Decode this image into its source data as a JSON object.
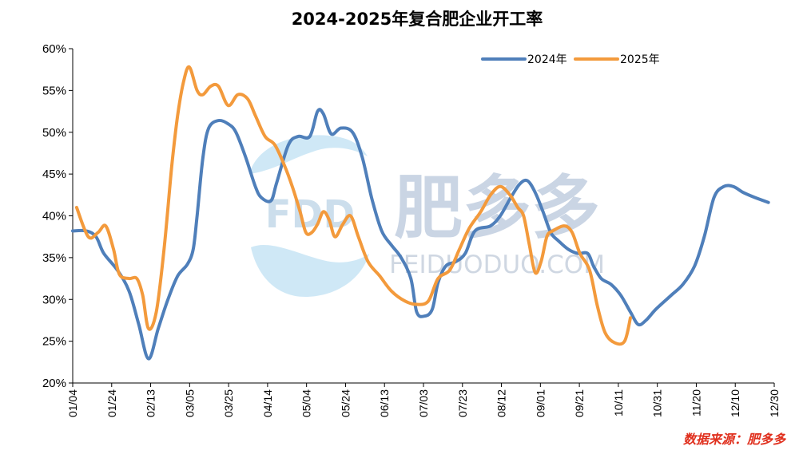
{
  "chart_data": {
    "type": "line",
    "title": "2024-2025年复合肥企业开工率",
    "x_tick_labels": [
      "01/04",
      "01/24",
      "02/13",
      "03/05",
      "03/25",
      "04/14",
      "05/04",
      "05/24",
      "06/13",
      "07/03",
      "07/23",
      "08/12",
      "09/01",
      "09/21",
      "10/11",
      "10/31",
      "11/20",
      "12/10",
      "12/30"
    ],
    "y_ticks": [
      20,
      25,
      30,
      35,
      40,
      45,
      50,
      55,
      60
    ],
    "y_tick_labels": [
      "20%",
      "25%",
      "30%",
      "35%",
      "40%",
      "45%",
      "50%",
      "55%",
      "60%"
    ],
    "ylim": [
      20,
      60
    ],
    "x_unit": "day_of_year",
    "xlim": [
      4,
      365
    ],
    "legend": {
      "position": "top-right"
    },
    "series": [
      {
        "name": "2024年",
        "color": "#4f7fba",
        "points": [
          [
            4,
            38.2
          ],
          [
            11,
            38.2
          ],
          [
            16,
            37.5
          ],
          [
            20,
            35.5
          ],
          [
            27,
            33.5
          ],
          [
            33,
            31
          ],
          [
            38,
            27
          ],
          [
            43,
            22.9
          ],
          [
            48,
            26.5
          ],
          [
            53,
            30
          ],
          [
            58,
            32.8
          ],
          [
            63,
            34.2
          ],
          [
            66,
            36
          ],
          [
            68,
            40
          ],
          [
            71,
            47
          ],
          [
            74,
            50.5
          ],
          [
            79,
            51.4
          ],
          [
            84,
            51
          ],
          [
            88,
            50
          ],
          [
            93,
            47
          ],
          [
            98,
            43.5
          ],
          [
            101,
            42.2
          ],
          [
            106,
            41.8
          ],
          [
            109,
            44
          ],
          [
            115,
            48.5
          ],
          [
            120,
            49.5
          ],
          [
            126,
            49.5
          ],
          [
            130,
            52.5
          ],
          [
            133,
            52.2
          ],
          [
            137,
            49.8
          ],
          [
            142,
            50.5
          ],
          [
            148,
            50
          ],
          [
            153,
            47
          ],
          [
            158,
            42
          ],
          [
            163,
            38.2
          ],
          [
            168,
            36.5
          ],
          [
            173,
            35
          ],
          [
            178,
            32.5
          ],
          [
            181,
            28.5
          ],
          [
            185,
            28
          ],
          [
            189,
            28.8
          ],
          [
            192,
            32
          ],
          [
            196,
            34
          ],
          [
            201,
            34.5
          ],
          [
            206,
            35.5
          ],
          [
            211,
            38.2
          ],
          [
            219,
            38.8
          ],
          [
            224,
            40
          ],
          [
            229,
            42
          ],
          [
            234,
            43.8
          ],
          [
            238,
            44.2
          ],
          [
            242,
            42.8
          ],
          [
            246,
            40.5
          ],
          [
            250,
            38
          ],
          [
            254,
            37
          ],
          [
            259,
            36
          ],
          [
            264,
            35.5
          ],
          [
            269,
            35.5
          ],
          [
            272,
            34
          ],
          [
            276,
            32.5
          ],
          [
            281,
            31.8
          ],
          [
            286,
            30.5
          ],
          [
            291,
            28.5
          ],
          [
            295,
            27
          ],
          [
            299,
            27.5
          ],
          [
            304,
            28.8
          ],
          [
            312,
            30.5
          ],
          [
            318,
            31.8
          ],
          [
            324,
            34
          ],
          [
            329,
            37.5
          ],
          [
            334,
            42.2
          ],
          [
            339,
            43.5
          ],
          [
            344,
            43.5
          ],
          [
            349,
            42.8
          ],
          [
            355,
            42.2
          ],
          [
            362,
            41.6
          ]
        ]
      },
      {
        "name": "2025年",
        "color": "#f39a3c",
        "points": [
          [
            6,
            41
          ],
          [
            12,
            37.5
          ],
          [
            17,
            38
          ],
          [
            21,
            38.8
          ],
          [
            25,
            36
          ],
          [
            28,
            33
          ],
          [
            33,
            32.5
          ],
          [
            37,
            32.5
          ],
          [
            40,
            30.5
          ],
          [
            43,
            26.5
          ],
          [
            47,
            28.5
          ],
          [
            51,
            36
          ],
          [
            55,
            46
          ],
          [
            58,
            52
          ],
          [
            61,
            56
          ],
          [
            64,
            57.8
          ],
          [
            68,
            55
          ],
          [
            71,
            54.5
          ],
          [
            75,
            55.5
          ],
          [
            79,
            55.5
          ],
          [
            84,
            53.2
          ],
          [
            89,
            54.5
          ],
          [
            94,
            54
          ],
          [
            98,
            52
          ],
          [
            103,
            49.5
          ],
          [
            108,
            48.5
          ],
          [
            113,
            46
          ],
          [
            117,
            43.5
          ],
          [
            121,
            40.5
          ],
          [
            124,
            38
          ],
          [
            127,
            38
          ],
          [
            130,
            39
          ],
          [
            133,
            40.5
          ],
          [
            136,
            39.5
          ],
          [
            139,
            37.5
          ],
          [
            143,
            39
          ],
          [
            147,
            40
          ],
          [
            151,
            37.5
          ],
          [
            156,
            34.5
          ],
          [
            162,
            32.8
          ],
          [
            168,
            31
          ],
          [
            175,
            29.8
          ],
          [
            181,
            29.4
          ],
          [
            187,
            29.8
          ],
          [
            192,
            32.5
          ],
          [
            198,
            33.5
          ],
          [
            203,
            36
          ],
          [
            208,
            38.5
          ],
          [
            214,
            40.5
          ],
          [
            219,
            42.5
          ],
          [
            224,
            43.5
          ],
          [
            229,
            42.5
          ],
          [
            233,
            41
          ],
          [
            236,
            40
          ],
          [
            239,
            36.5
          ],
          [
            242,
            33.2
          ],
          [
            245,
            34.5
          ],
          [
            248,
            37.5
          ],
          [
            251,
            38.2
          ],
          [
            257,
            38.8
          ],
          [
            261,
            38
          ],
          [
            265,
            35.5
          ],
          [
            270,
            33.5
          ],
          [
            274,
            29.2
          ],
          [
            278,
            26
          ],
          [
            283,
            24.8
          ],
          [
            288,
            25
          ],
          [
            291,
            27.8
          ]
        ]
      }
    ],
    "watermark": {
      "logo_text": "FDD",
      "cn_text": "肥多多",
      "en_text": "FEIDUODUO.COM"
    },
    "source_note": "数据来源：肥多多"
  }
}
